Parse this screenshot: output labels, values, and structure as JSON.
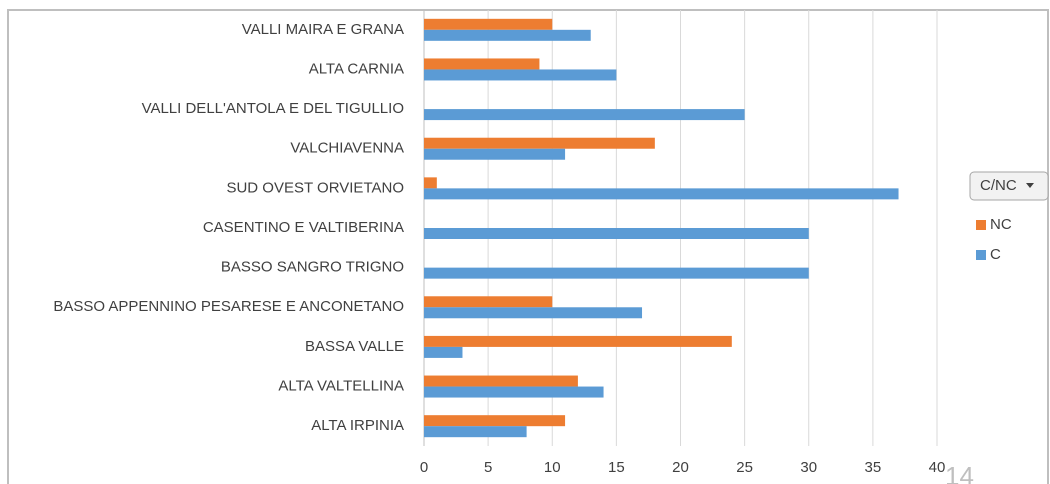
{
  "chart_data": {
    "type": "bar",
    "orientation": "horizontal",
    "categories": [
      "VALLI MAIRA E GRANA",
      "ALTA CARNIA",
      "VALLI DELL'ANTOLA E DEL TIGULLIO",
      "VALCHIAVENNA",
      "SUD OVEST ORVIETANO",
      "CASENTINO E VALTIBERINA",
      "BASSO SANGRO TRIGNO",
      "BASSO APPENNINO PESARESE E ANCONETANO",
      "BASSA VALLE",
      "ALTA VALTELLINA",
      "ALTA IRPINIA"
    ],
    "series": [
      {
        "name": "NC",
        "color": "#ed7d31",
        "values": [
          10,
          9,
          0,
          18,
          1,
          0,
          0,
          10,
          24,
          12,
          11
        ]
      },
      {
        "name": "C",
        "color": "#5b9bd5",
        "values": [
          13,
          15,
          25,
          11,
          37,
          30,
          30,
          17,
          3,
          14,
          8
        ]
      }
    ],
    "legend_filter": "C/NC",
    "legend": "right",
    "xlim": [
      0,
      40
    ],
    "xticks": [
      0,
      5,
      10,
      15,
      20,
      25,
      30,
      35,
      40
    ],
    "grid": true,
    "page_number": "14"
  }
}
